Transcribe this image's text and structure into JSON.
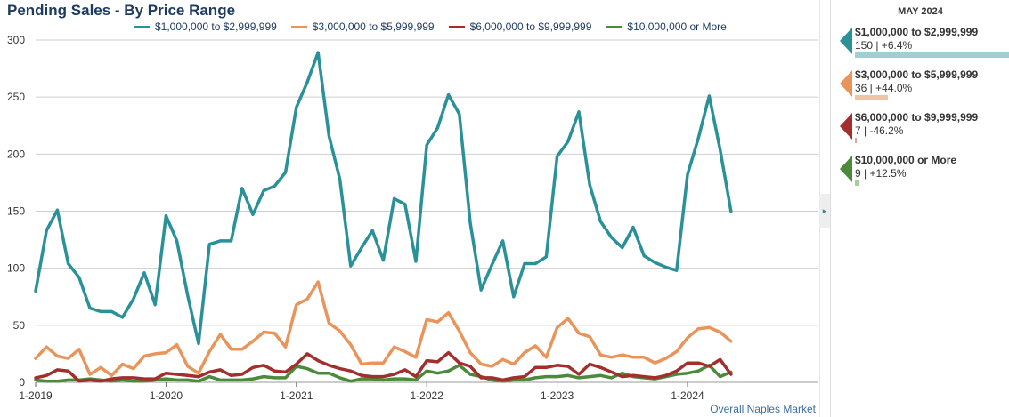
{
  "title": "Pending Sales - By Price Range",
  "source_label": "Overall Naples Market",
  "expand_glyph": "▸",
  "panel": {
    "month": "MAY 2024",
    "items": [
      {
        "label": "$1,000,000 to $2,999,999",
        "value": "150 | +6.4%",
        "color": "#2a9199",
        "bar_fill": 1.0
      },
      {
        "label": "$3,000,000 to $5,999,999",
        "value": "36 | +44.0%",
        "color": "#e8945a",
        "bar_fill": 0.24
      },
      {
        "label": "$6,000,000 to $9,999,999",
        "value": "7 | -46.2%",
        "color": "#a32e2e",
        "bar_fill": 0.047
      },
      {
        "label": "$10,000,000 or More",
        "value": "9 | +12.5%",
        "color": "#4a8a3a",
        "bar_fill": 0.06
      }
    ]
  },
  "chart_data": {
    "type": "line",
    "title": "Pending Sales - By Price Range",
    "x_start": "2019-01",
    "x_end": "2024-05",
    "xticks": [
      "1-2019",
      "1-2020",
      "1-2021",
      "1-2022",
      "1-2023",
      "1-2024"
    ],
    "yticks": [
      "0",
      "50",
      "100",
      "150",
      "200",
      "250",
      "300"
    ],
    "ylim": [
      0,
      300
    ],
    "grid": true,
    "legend_position": "top",
    "series": [
      {
        "name": "$1,000,000 to $2,999,999",
        "color": "#2a9199",
        "values": [
          80,
          133,
          151,
          104,
          92,
          65,
          62,
          62,
          57,
          73,
          96,
          68,
          146,
          124,
          76,
          34,
          121,
          124,
          124,
          170,
          147,
          168,
          172,
          184,
          241,
          263,
          289,
          216,
          178,
          102,
          118,
          133,
          107,
          161,
          156,
          106,
          208,
          223,
          252,
          235,
          140,
          81,
          103,
          124,
          75,
          104,
          104,
          110,
          198,
          211,
          237,
          173,
          141,
          127,
          118,
          136,
          111,
          105,
          101,
          98,
          182,
          214,
          251,
          204,
          150
        ]
      },
      {
        "name": "$3,000,000 to $5,999,999",
        "color": "#e8945a",
        "values": [
          21,
          31,
          23,
          21,
          29,
          7,
          13,
          6,
          16,
          12,
          23,
          25,
          26,
          33,
          14,
          8,
          27,
          42,
          29,
          29,
          36,
          44,
          43,
          31,
          68,
          73,
          88,
          52,
          45,
          33,
          16,
          17,
          17,
          31,
          27,
          22,
          55,
          53,
          61,
          45,
          26,
          16,
          14,
          20,
          16,
          26,
          32,
          22,
          48,
          56,
          43,
          40,
          24,
          22,
          24,
          22,
          22,
          17,
          21,
          27,
          39,
          47,
          48,
          44,
          36
        ]
      },
      {
        "name": "$6,000,000 to $9,999,999",
        "color": "#a32e2e",
        "values": [
          4,
          6,
          11,
          10,
          1,
          2,
          1,
          3,
          4,
          4,
          3,
          3,
          8,
          7,
          6,
          5,
          9,
          11,
          6,
          7,
          13,
          15,
          10,
          9,
          16,
          25,
          19,
          15,
          12,
          10,
          6,
          5,
          5,
          7,
          11,
          5,
          19,
          18,
          26,
          17,
          14,
          4,
          4,
          2,
          4,
          5,
          13,
          13,
          15,
          14,
          7,
          16,
          13,
          9,
          5,
          6,
          5,
          4,
          6,
          10,
          17,
          17,
          14,
          20,
          7
        ]
      },
      {
        "name": "$10,000,000 or More",
        "color": "#4a8a3a",
        "values": [
          2,
          1,
          1,
          2,
          2,
          3,
          2,
          1,
          2,
          1,
          1,
          2,
          3,
          2,
          2,
          1,
          5,
          2,
          2,
          2,
          3,
          5,
          4,
          4,
          14,
          12,
          8,
          8,
          4,
          1,
          3,
          3,
          2,
          3,
          3,
          2,
          10,
          8,
          10,
          15,
          7,
          5,
          2,
          1,
          2,
          2,
          4,
          5,
          5,
          6,
          4,
          5,
          6,
          4,
          8,
          5,
          4,
          3,
          5,
          7,
          8,
          10,
          15,
          5,
          9
        ]
      }
    ]
  }
}
